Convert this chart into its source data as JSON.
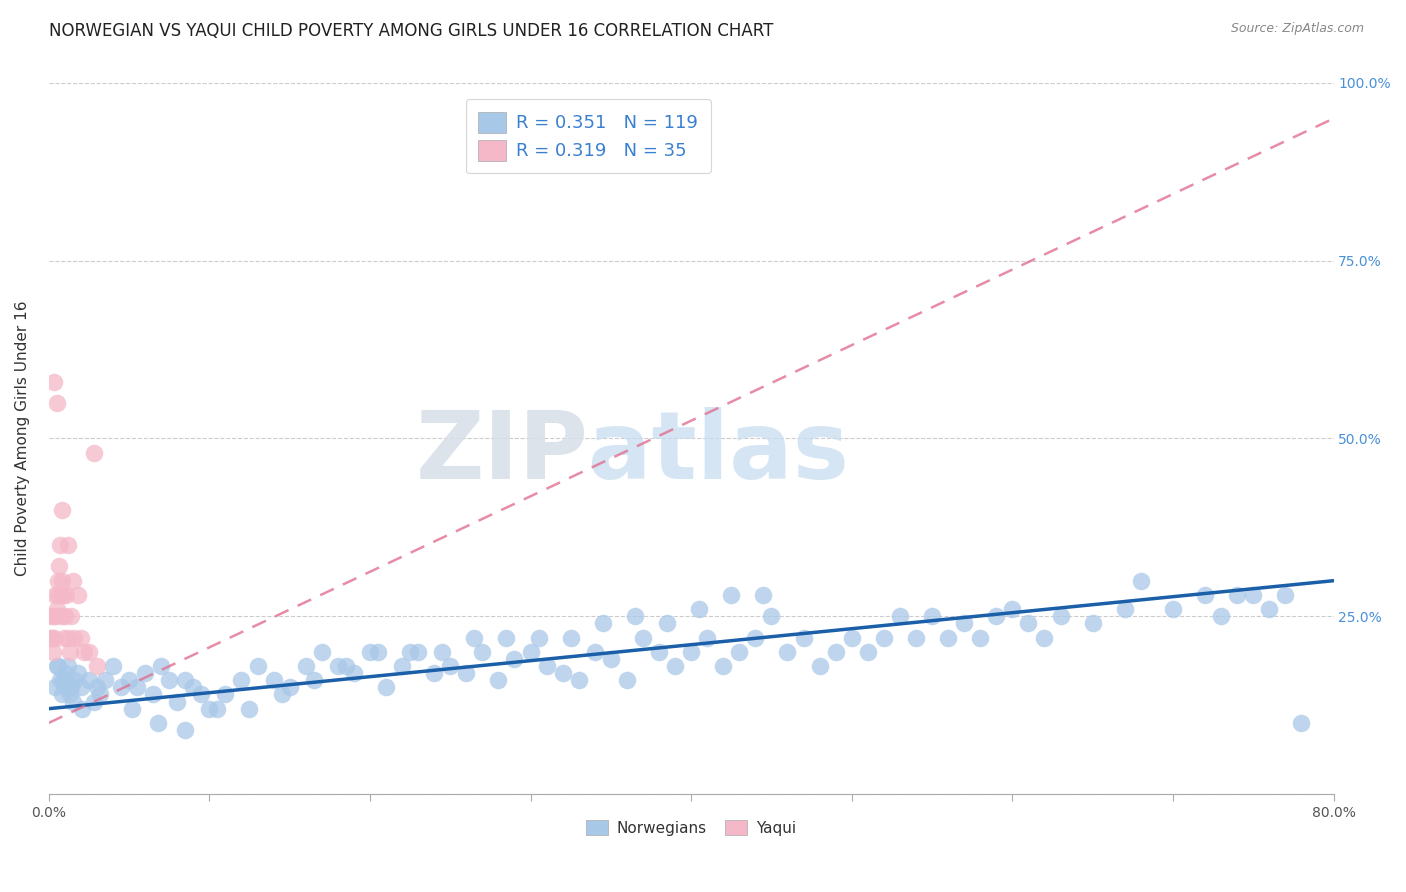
{
  "title": "NORWEGIAN VS YAQUI CHILD POVERTY AMONG GIRLS UNDER 16 CORRELATION CHART",
  "source": "Source: ZipAtlas.com",
  "ylabel": "Child Poverty Among Girls Under 16",
  "legend_label1": "Norwegians",
  "legend_label2": "Yaqui",
  "R1": 0.351,
  "N1": 119,
  "R2": 0.319,
  "N2": 35,
  "watermark_zip": "ZIP",
  "watermark_atlas": "atlas",
  "color_norwegian": "#a8c8e8",
  "color_yaqui": "#f4b8c8",
  "color_trend_norwegian": "#1a5fa8",
  "color_trend_yaqui": "#e07090",
  "norwegian_x": [
    0.4,
    0.6,
    0.8,
    0.9,
    1.0,
    1.1,
    1.2,
    1.3,
    1.4,
    1.5,
    1.6,
    1.8,
    2.0,
    2.1,
    2.5,
    2.8,
    3.0,
    3.2,
    0.5,
    0.7,
    3.5,
    4.0,
    4.5,
    5.0,
    5.5,
    6.0,
    6.5,
    7.0,
    7.5,
    8.0,
    8.5,
    9.0,
    9.5,
    10.0,
    11.0,
    12.0,
    13.0,
    14.0,
    15.0,
    16.0,
    17.0,
    18.0,
    19.0,
    20.0,
    21.0,
    22.0,
    23.0,
    24.0,
    25.0,
    26.0,
    27.0,
    28.0,
    29.0,
    30.0,
    31.0,
    32.0,
    33.0,
    34.0,
    35.0,
    36.0,
    37.0,
    38.0,
    39.0,
    40.0,
    41.0,
    42.0,
    43.0,
    44.0,
    45.0,
    46.0,
    47.0,
    48.0,
    49.0,
    50.0,
    51.0,
    52.0,
    53.0,
    54.0,
    55.0,
    56.0,
    57.0,
    58.0,
    59.0,
    60.0,
    61.0,
    62.0,
    63.0,
    65.0,
    67.0,
    68.0,
    70.0,
    72.0,
    73.0,
    74.0,
    75.0,
    76.0,
    77.0,
    78.0,
    5.2,
    6.8,
    8.5,
    10.5,
    12.5,
    14.5,
    16.5,
    18.5,
    20.5,
    22.5,
    24.5,
    26.5,
    28.5,
    30.5,
    32.5,
    34.5,
    36.5,
    38.5,
    40.5,
    42.5,
    44.5
  ],
  "norwegian_y": [
    15,
    18,
    14,
    16,
    17,
    15,
    18,
    14,
    15,
    13,
    16,
    17,
    15,
    12,
    16,
    13,
    15,
    14,
    18,
    16,
    16,
    18,
    15,
    16,
    15,
    17,
    14,
    18,
    16,
    13,
    16,
    15,
    14,
    12,
    14,
    16,
    18,
    16,
    15,
    18,
    20,
    18,
    17,
    20,
    15,
    18,
    20,
    17,
    18,
    17,
    20,
    16,
    19,
    20,
    18,
    17,
    16,
    20,
    19,
    16,
    22,
    20,
    18,
    20,
    22,
    18,
    20,
    22,
    25,
    20,
    22,
    18,
    20,
    22,
    20,
    22,
    25,
    22,
    25,
    22,
    24,
    22,
    25,
    26,
    24,
    22,
    25,
    24,
    26,
    30,
    26,
    28,
    25,
    28,
    28,
    26,
    28,
    10,
    12,
    10,
    9,
    12,
    12,
    14,
    16,
    18,
    20,
    20,
    20,
    22,
    22,
    22,
    22,
    24,
    25,
    24,
    26,
    28,
    28
  ],
  "yaqui_x": [
    0.1,
    0.15,
    0.2,
    0.25,
    0.3,
    0.35,
    0.4,
    0.45,
    0.5,
    0.55,
    0.6,
    0.65,
    0.7,
    0.75,
    0.8,
    0.85,
    0.9,
    0.95,
    1.0,
    1.1,
    1.2,
    1.3,
    1.4,
    1.5,
    1.6,
    1.8,
    2.0,
    2.2,
    2.5,
    3.0,
    0.3,
    0.5,
    0.8,
    1.2,
    2.8
  ],
  "yaqui_y": [
    25,
    22,
    22,
    20,
    25,
    22,
    28,
    25,
    26,
    28,
    30,
    32,
    35,
    28,
    30,
    25,
    28,
    22,
    25,
    28,
    22,
    20,
    25,
    30,
    22,
    28,
    22,
    20,
    20,
    18,
    58,
    55,
    40,
    35,
    48
  ],
  "nor_trend_x0": 0.0,
  "nor_trend_x1": 80.0,
  "nor_trend_y0": 12.0,
  "nor_trend_y1": 30.0,
  "yaq_trend_x0": 0.0,
  "yaq_trend_x1": 80.0,
  "yaq_trend_y0": 10.0,
  "yaq_trend_y1": 95.0,
  "xlim": [
    0.0,
    80.0
  ],
  "ylim": [
    0.0,
    100.0
  ],
  "title_fontsize": 12,
  "axis_label_fontsize": 11,
  "tick_fontsize": 10
}
